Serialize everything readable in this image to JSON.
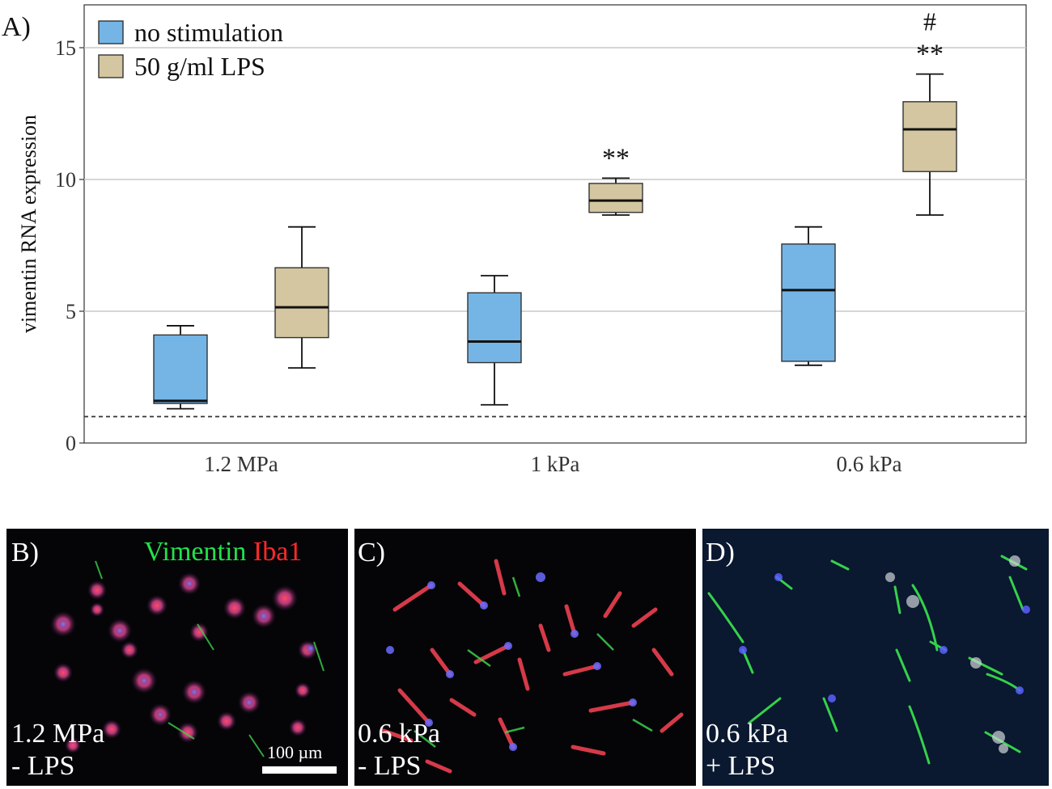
{
  "panel_a_label": "A)",
  "chart_data": {
    "type": "box",
    "title": "",
    "xlabel": "",
    "ylabel": "vimentin RNA expression",
    "ylim": [
      0,
      16.5
    ],
    "yticks": [
      0,
      5,
      10,
      15
    ],
    "grid": true,
    "legend_position": "top-left",
    "reference_line": 1,
    "categories": [
      "1.2 MPa",
      "1 kPa",
      "0.6 kPa"
    ],
    "series": [
      {
        "name": "no stimulation",
        "color": "#74b5e6",
        "boxes": [
          {
            "min": 1.3,
            "q1": 1.5,
            "median": 1.6,
            "q3": 4.1,
            "max": 4.45,
            "annotation": ""
          },
          {
            "min": 1.45,
            "q1": 3.05,
            "median": 3.85,
            "q3": 5.7,
            "max": 6.35,
            "annotation": ""
          },
          {
            "min": 2.95,
            "q1": 3.1,
            "median": 5.8,
            "q3": 7.55,
            "max": 8.2,
            "annotation": ""
          }
        ]
      },
      {
        "name": "50 g/ml LPS",
        "color": "#d3c6a0",
        "boxes": [
          {
            "min": 2.85,
            "q1": 4.0,
            "median": 5.15,
            "q3": 6.65,
            "max": 8.2,
            "annotation": ""
          },
          {
            "min": 8.65,
            "q1": 8.75,
            "median": 9.2,
            "q3": 9.85,
            "max": 10.05,
            "annotation": "**"
          },
          {
            "min": 8.65,
            "q1": 10.3,
            "median": 11.9,
            "q3": 12.95,
            "max": 14.0,
            "annotation": "**",
            "annotation2": "#"
          }
        ]
      }
    ]
  },
  "images": [
    {
      "label": "B)",
      "condition_line1": "1.2 MPa",
      "condition_line2": "- LPS",
      "stain_green": "Vimentin",
      "stain_red": "Iba1",
      "scale_bar": "100 µm"
    },
    {
      "label": "C)",
      "condition_line1": "0.6 kPa",
      "condition_line2": "- LPS"
    },
    {
      "label": "D)",
      "condition_line1": "0.6 kPa",
      "condition_line2": "+ LPS"
    }
  ]
}
